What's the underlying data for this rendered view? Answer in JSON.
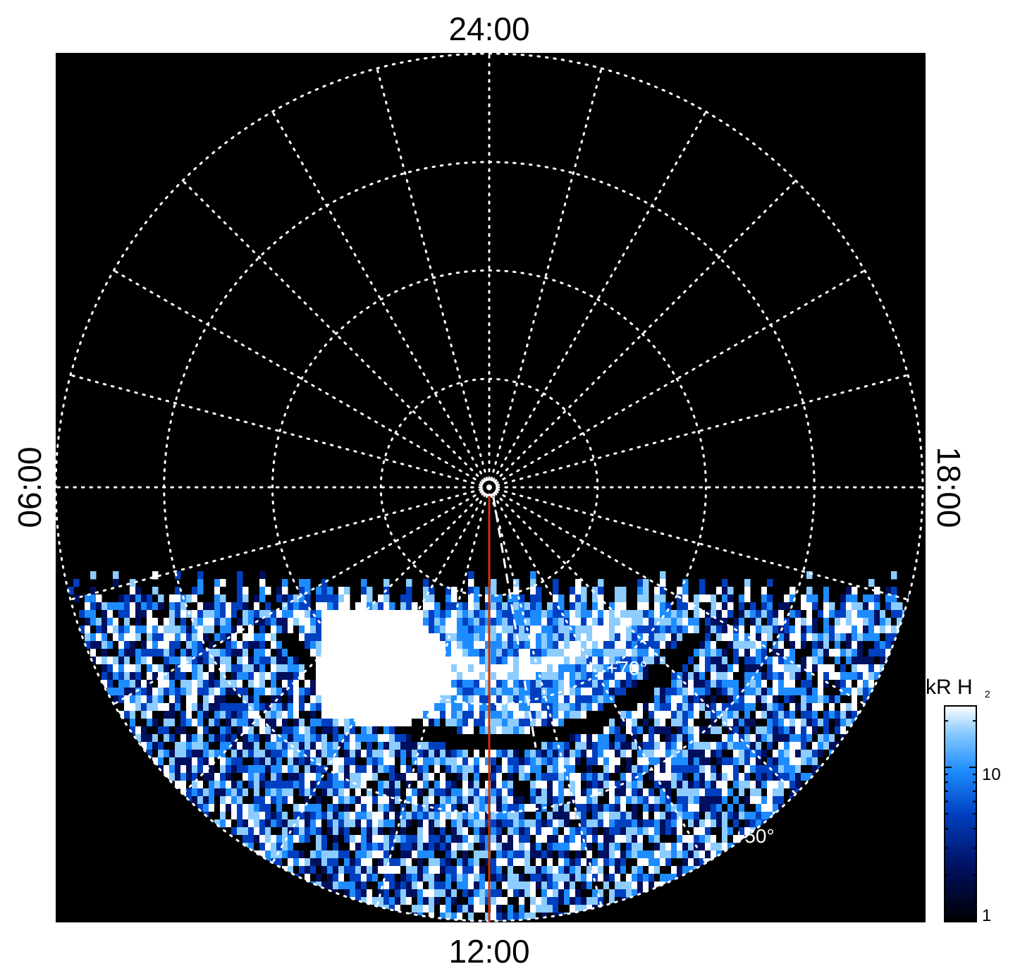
{
  "chart_data": {
    "type": "heatmap",
    "projection": "polar",
    "local_time_labels": {
      "top": "24:00",
      "bottom": "12:00",
      "left": "06:00",
      "right": "18:00"
    },
    "latitude_labels": [
      {
        "lat": 70,
        "text": "+70°"
      },
      {
        "lat": 50,
        "text": "+50°"
      }
    ],
    "grid": {
      "visible": true,
      "style": "dotted",
      "color": "#ffffff",
      "latitude_circles_deg": [
        80,
        70,
        60,
        50
      ],
      "meridian_step_hours": 1
    },
    "colorbar": {
      "title": "kR H",
      "title_subscript": "2",
      "scale": "log",
      "range": [
        1,
        25
      ],
      "tick_labels": [
        {
          "value": 1,
          "label": "1"
        },
        {
          "value": 10,
          "label": "10"
        }
      ],
      "colors": [
        "#000000",
        "#00105e",
        "#0040c0",
        "#1e8cff",
        "#8cccff",
        "#ffffff"
      ]
    },
    "overlays": [
      {
        "name": "noon meridian",
        "color": "#cc3300",
        "style": "solid"
      },
      {
        "name": "dashed reference",
        "color": "#ffffff",
        "style": "dashed"
      }
    ],
    "background_color": "#000000"
  }
}
